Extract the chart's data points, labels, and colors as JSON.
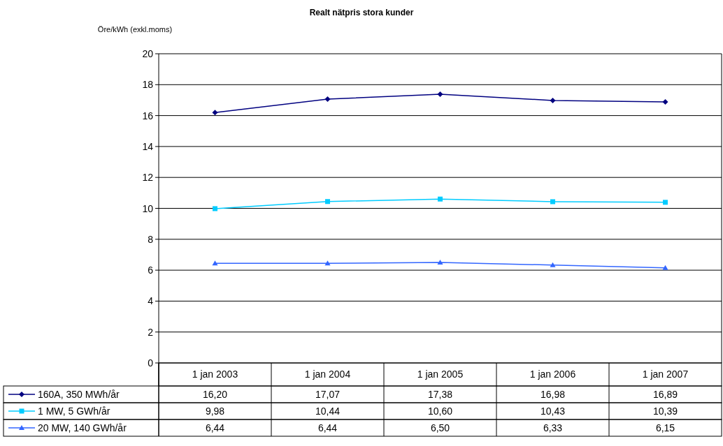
{
  "chart_data": {
    "type": "line",
    "title": "Realt nätpris stora kunder",
    "ylabel": "Öre/kWh (exkl.moms)",
    "categories": [
      "1 jan 2003",
      "1 jan 2004",
      "1 jan 2005",
      "1 jan 2006",
      "1 jan 2007"
    ],
    "series": [
      {
        "name": "160A, 350 MWh/år",
        "color": "#000080",
        "marker": "diamond",
        "values": [
          16.2,
          17.07,
          17.38,
          16.98,
          16.89
        ],
        "value_labels": [
          "16,20",
          "17,07",
          "17,38",
          "16,98",
          "16,89"
        ]
      },
      {
        "name": "1 MW, 5 GWh/år",
        "color": "#00ccff",
        "marker": "square",
        "values": [
          9.98,
          10.44,
          10.6,
          10.43,
          10.39
        ],
        "value_labels": [
          "9,98",
          "10,44",
          "10,60",
          "10,43",
          "10,39"
        ]
      },
      {
        "name": "20 MW, 140 GWh/år",
        "color": "#3366ff",
        "marker": "triangle",
        "values": [
          6.44,
          6.44,
          6.5,
          6.33,
          6.15
        ],
        "value_labels": [
          "6,44",
          "6,44",
          "6,50",
          "6,33",
          "6,15"
        ]
      }
    ],
    "ylim": [
      0,
      20
    ],
    "yticks": [
      0,
      2,
      4,
      6,
      8,
      10,
      12,
      14,
      16,
      18,
      20
    ],
    "grid": "y",
    "legend": "bottom"
  }
}
